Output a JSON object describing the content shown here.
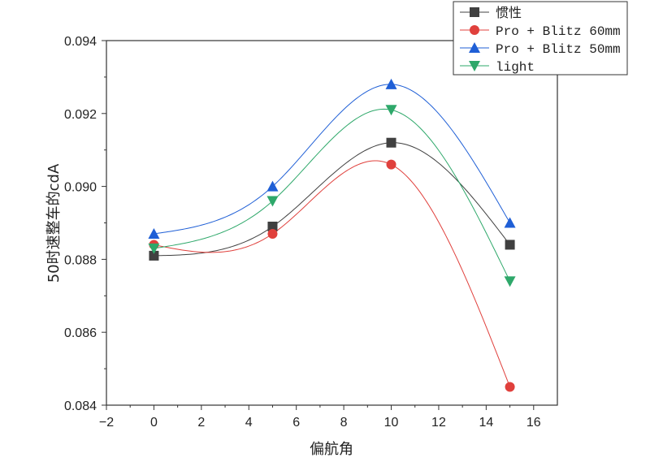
{
  "chart_data": {
    "type": "line",
    "title": "",
    "xlabel": "偏航角",
    "ylabel": "50时速整车的cdA",
    "xlim": [
      -2,
      17
    ],
    "ylim": [
      0.084,
      0.094
    ],
    "xticks": [
      "−2",
      "0",
      "2",
      "4",
      "6",
      "8",
      "10",
      "12",
      "14",
      "16"
    ],
    "yticks": [
      "0.084",
      "0.086",
      "0.088",
      "0.090",
      "0.092",
      "0.094"
    ],
    "legend_position": "top-right",
    "grid": false,
    "x": [
      0,
      5,
      10,
      15
    ],
    "series": [
      {
        "name": "惯性",
        "values": [
          0.0881,
          0.0889,
          0.0912,
          0.0884
        ],
        "color": "#404040",
        "marker": "square"
      },
      {
        "name": "Pro + Blitz 60mm",
        "values": [
          0.0884,
          0.0887,
          0.0906,
          0.0845
        ],
        "color": "#e0403c",
        "marker": "circle"
      },
      {
        "name": "Pro + Blitz 50mm",
        "values": [
          0.0887,
          0.09,
          0.0928,
          0.089
        ],
        "color": "#1f5fd6",
        "marker": "triangle-up"
      },
      {
        "name": "light",
        "values": [
          0.0883,
          0.0896,
          0.0921,
          0.0874
        ],
        "color": "#2ea86a",
        "marker": "triangle-down"
      }
    ]
  }
}
